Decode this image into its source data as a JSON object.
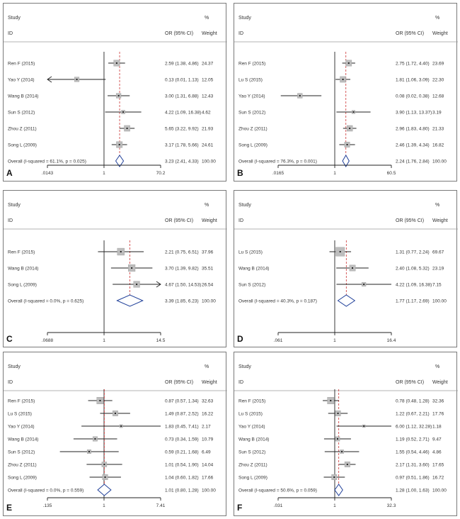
{
  "chart_data": [
    {
      "panel": "A",
      "type": "forest",
      "headers": {
        "study": "Study",
        "id": "ID",
        "or": "OR (95% CI)",
        "pct": "%",
        "weight": "Weight"
      },
      "rows": [
        {
          "label": "Ren F (2015)",
          "or": 2.59,
          "lo": 1.38,
          "hi": 4.86,
          "text": "2.59 (1.38, 4.86)",
          "weight": "24.37"
        },
        {
          "label": "Yao Y (2014)",
          "or": 0.13,
          "lo": 0.01,
          "hi": 1.13,
          "text": "0.13 (0.01, 1.13)",
          "weight": "12.05"
        },
        {
          "label": "Wang B (2014)",
          "or": 3.0,
          "lo": 1.31,
          "hi": 6.88,
          "text": "3.00 (1.31, 6.88)",
          "weight": "12.43"
        },
        {
          "label": "Sun S (2012)",
          "or": 4.22,
          "lo": 1.09,
          "hi": 16.38,
          "text": "4.22 (1.09, 16.38)",
          "weight": "4.62"
        },
        {
          "label": "Zhou Z (2011)",
          "or": 5.65,
          "lo": 3.22,
          "hi": 9.92,
          "text": "5.65 (3.22, 9.92)",
          "weight": "21.93"
        },
        {
          "label": "Song L (2009)",
          "or": 3.17,
          "lo": 1.78,
          "hi": 5.66,
          "text": "3.17 (1.78, 5.66)",
          "weight": "24.61"
        }
      ],
      "overall": {
        "label": "Overall  (I-squared = 61.1%, p = 0.025)",
        "or": 3.23,
        "lo": 2.41,
        "hi": 4.33,
        "text": "3.23 (2.41, 4.33)",
        "weight": "100.00"
      },
      "axis": {
        "min": 0.0143,
        "max": 70.2,
        "scale": "log",
        "ticks": [
          ".0143",
          "1",
          "70.2"
        ]
      }
    },
    {
      "panel": "B",
      "type": "forest",
      "headers": {
        "study": "Study",
        "id": "ID",
        "or": "OR (95% CI)",
        "pct": "%",
        "weight": "Weight"
      },
      "rows": [
        {
          "label": "Ren F (2015)",
          "or": 2.75,
          "lo": 1.72,
          "hi": 4.4,
          "text": "2.75 (1.72, 4.40)",
          "weight": "23.69"
        },
        {
          "label": "Lu S (2015)",
          "or": 1.81,
          "lo": 1.06,
          "hi": 3.09,
          "text": "1.81 (1.06, 3.09)",
          "weight": "22.30"
        },
        {
          "label": "Yao Y (2014)",
          "or": 0.08,
          "lo": 0.02,
          "hi": 0.38,
          "text": "0.08 (0.02, 0.38)",
          "weight": "12.68"
        },
        {
          "label": "Sun S (2012)",
          "or": 3.9,
          "lo": 1.13,
          "hi": 13.37,
          "text": "3.90 (1.13, 13.37)",
          "weight": "3.19"
        },
        {
          "label": "Zhou Z (2011)",
          "or": 2.96,
          "lo": 1.83,
          "hi": 4.8,
          "text": "2.96 (1.83, 4.80)",
          "weight": "21.33"
        },
        {
          "label": "Song L (2009)",
          "or": 2.46,
          "lo": 1.39,
          "hi": 4.34,
          "text": "2.46 (1.39, 4.34)",
          "weight": "16.82"
        }
      ],
      "overall": {
        "label": "Overall  (I-squared = 76.3%, p = 0.001)",
        "or": 2.24,
        "lo": 1.76,
        "hi": 2.84,
        "text": "2.24 (1.76, 2.84)",
        "weight": "100.00"
      },
      "axis": {
        "min": 0.0165,
        "max": 60.5,
        "scale": "log",
        "ticks": [
          ".0165",
          "1",
          "60.5"
        ]
      }
    },
    {
      "panel": "C",
      "type": "forest",
      "headers": {
        "study": "Study",
        "id": "ID",
        "or": "OR (95% CI)",
        "pct": "%",
        "weight": "Weight"
      },
      "rows": [
        {
          "label": "Ren F (2015)",
          "or": 2.21,
          "lo": 0.75,
          "hi": 6.51,
          "text": "2.21 (0.75, 6.51)",
          "weight": "37.96"
        },
        {
          "label": "Wang B (2014)",
          "or": 3.7,
          "lo": 1.39,
          "hi": 9.82,
          "text": "3.70 (1.39, 9.82)",
          "weight": "35.51"
        },
        {
          "label": "Song L (2009)",
          "or": 4.67,
          "lo": 1.5,
          "hi": 14.53,
          "text": "4.67 (1.50, 14.53)",
          "weight": "26.54"
        }
      ],
      "overall": {
        "label": "Overall  (I-squared = 0.0%, p = 0.625)",
        "or": 3.39,
        "lo": 1.85,
        "hi": 6.23,
        "text": "3.39 (1.85, 6.23)",
        "weight": "100.00"
      },
      "axis": {
        "min": 0.0688,
        "max": 14.5,
        "scale": "log",
        "ticks": [
          ".0688",
          "1",
          "14.5"
        ]
      }
    },
    {
      "panel": "D",
      "type": "forest",
      "headers": {
        "study": "Study",
        "id": "ID",
        "or": "OR (95% CI)",
        "pct": "%",
        "weight": "Weight"
      },
      "rows": [
        {
          "label": "Lu S (2015)",
          "or": 1.31,
          "lo": 0.77,
          "hi": 2.24,
          "text": "1.31 (0.77, 2.24)",
          "weight": "69.67"
        },
        {
          "label": "Wang B (2014)",
          "or": 2.4,
          "lo": 1.08,
          "hi": 5.32,
          "text": "2.40 (1.08, 5.32)",
          "weight": "23.19"
        },
        {
          "label": "Sun S (2012)",
          "or": 4.22,
          "lo": 1.09,
          "hi": 16.38,
          "text": "4.22 (1.09, 16.38)",
          "weight": "7.15"
        }
      ],
      "overall": {
        "label": "Overall  (I-squared = 40.3%, p = 0.187)",
        "or": 1.77,
        "lo": 1.17,
        "hi": 2.69,
        "text": "1.77 (1.17, 2.69)",
        "weight": "100.00"
      },
      "axis": {
        "min": 0.061,
        "max": 16.4,
        "scale": "log",
        "ticks": [
          ".061",
          "1",
          "16.4"
        ]
      }
    },
    {
      "panel": "E",
      "type": "forest",
      "headers": {
        "study": "Study",
        "id": "ID",
        "or": "OR (95% CI)",
        "pct": "%",
        "weight": "Weight"
      },
      "rows": [
        {
          "label": "Ren F (2015)",
          "or": 0.87,
          "lo": 0.57,
          "hi": 1.34,
          "text": "0.87 (0.57, 1.34)",
          "weight": "32.63"
        },
        {
          "label": "Lu S (2015)",
          "or": 1.49,
          "lo": 0.87,
          "hi": 2.52,
          "text": "1.49 (0.87, 2.52)",
          "weight": "16.22"
        },
        {
          "label": "Yao Y (2014)",
          "or": 1.83,
          "lo": 0.45,
          "hi": 7.41,
          "text": "1.83 (0.45, 7.41)",
          "weight": "2.17"
        },
        {
          "label": "Wang B (2014)",
          "or": 0.73,
          "lo": 0.34,
          "hi": 1.59,
          "text": "0.73 (0.34, 1.59)",
          "weight": "10.79"
        },
        {
          "label": "Sun S (2012)",
          "or": 0.59,
          "lo": 0.21,
          "hi": 1.68,
          "text": "0.59 (0.21, 1.68)",
          "weight": "6.49"
        },
        {
          "label": "Zhou Z (2011)",
          "or": 1.01,
          "lo": 0.54,
          "hi": 1.9,
          "text": "1.01 (0.54, 1.90)",
          "weight": "14.04"
        },
        {
          "label": "Song L (2009)",
          "or": 1.04,
          "lo": 0.6,
          "hi": 1.82,
          "text": "1.04 (0.60, 1.82)",
          "weight": "17.66"
        }
      ],
      "overall": {
        "label": "Overall  (I-squared = 0.0%, p = 0.559)",
        "or": 1.01,
        "lo": 0.8,
        "hi": 1.28,
        "text": "1.01 (0.80, 1.28)",
        "weight": "100.00"
      },
      "axis": {
        "min": 0.135,
        "max": 7.41,
        "scale": "log",
        "ticks": [
          ".135",
          "1",
          "7.41"
        ]
      }
    },
    {
      "panel": "F",
      "type": "forest",
      "headers": {
        "study": "Study",
        "id": "ID",
        "or": "OR (95% CI)",
        "pct": "%",
        "weight": "Weight"
      },
      "rows": [
        {
          "label": "Ren F (2015)",
          "or": 0.78,
          "lo": 0.48,
          "hi": 1.28,
          "text": "0.78 (0.48, 1.28)",
          "weight": "32.36"
        },
        {
          "label": "Lu S (2015)",
          "or": 1.22,
          "lo": 0.67,
          "hi": 2.21,
          "text": "1.22 (0.67, 2.21)",
          "weight": "17.76"
        },
        {
          "label": "Yao Y (2014)",
          "or": 6.0,
          "lo": 1.12,
          "hi": 32.28,
          "text": "6.00 (1.12, 32.28)",
          "weight": "1.18"
        },
        {
          "label": "Wang B (2014)",
          "or": 1.19,
          "lo": 0.52,
          "hi": 2.71,
          "text": "1.19 (0.52, 2.71)",
          "weight": "9.47"
        },
        {
          "label": "Sun S (2012)",
          "or": 1.55,
          "lo": 0.54,
          "hi": 4.46,
          "text": "1.55 (0.54, 4.46)",
          "weight": "4.86"
        },
        {
          "label": "Zhou Z (2011)",
          "or": 2.17,
          "lo": 1.31,
          "hi": 3.6,
          "text": "2.17 (1.31, 3.60)",
          "weight": "17.65"
        },
        {
          "label": "Song L (2009)",
          "or": 0.97,
          "lo": 0.51,
          "hi": 1.86,
          "text": "0.97 (0.51, 1.86)",
          "weight": "16.72"
        }
      ],
      "overall": {
        "label": "Overall  (I-squared = 50.6%, p = 0.059)",
        "or": 1.28,
        "lo": 1.0,
        "hi": 1.63,
        "text": "1.28 (1.00, 1.63)",
        "weight": "100.00"
      },
      "axis": {
        "min": 0.031,
        "max": 32.3,
        "scale": "log",
        "ticks": [
          ".031",
          "1",
          "32.3"
        ]
      }
    }
  ],
  "colors": {
    "line": "#222222",
    "dashed": "#cc3333",
    "diamond": "#1f3f99",
    "box": "#bdbdbd"
  }
}
